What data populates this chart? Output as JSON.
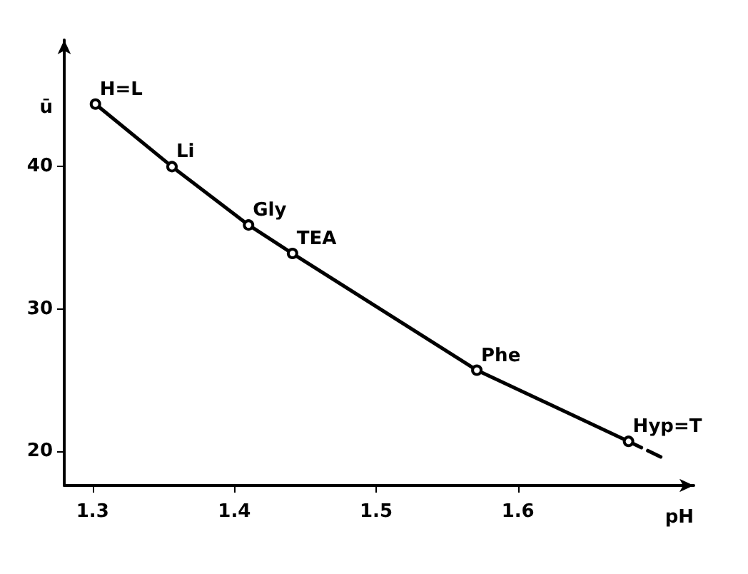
{
  "chart_data": {
    "type": "line",
    "xlabel": "pH",
    "ylabel": "ū",
    "series": [
      {
        "color": "#000000",
        "x": [
          1.302,
          1.356,
          1.41,
          1.441,
          1.571,
          1.678
        ],
        "values": [
          44.4,
          40,
          35.9,
          33.9,
          25.7,
          20.7
        ]
      },
      {
        "color": "#000000",
        "line_style": "dashed",
        "marker": "none",
        "x": [
          1.678,
          1.703
        ],
        "values": [
          20.7,
          19.5
        ]
      }
    ],
    "annotations": [
      {
        "text": "H=L",
        "x": 1.302,
        "y": 44.4
      },
      {
        "text": "Li",
        "x": 1.356,
        "y": 40
      },
      {
        "text": "Gly",
        "x": 1.41,
        "y": 35.9
      },
      {
        "text": "TEA",
        "x": 1.441,
        "y": 33.9
      },
      {
        "text": "Phe",
        "x": 1.571,
        "y": 25.7
      },
      {
        "text": "Hyp=T",
        "x": 1.678,
        "y": 20.7
      }
    ],
    "xlim": [
      1.28,
      1.724
    ],
    "xticks": [
      1.3,
      1.4,
      1.5,
      1.6
    ],
    "ylim": [
      17.6,
      48.9
    ],
    "yticks": [
      20,
      30,
      40
    ],
    "grid": false,
    "marker": "circle",
    "line_style": "solid"
  }
}
